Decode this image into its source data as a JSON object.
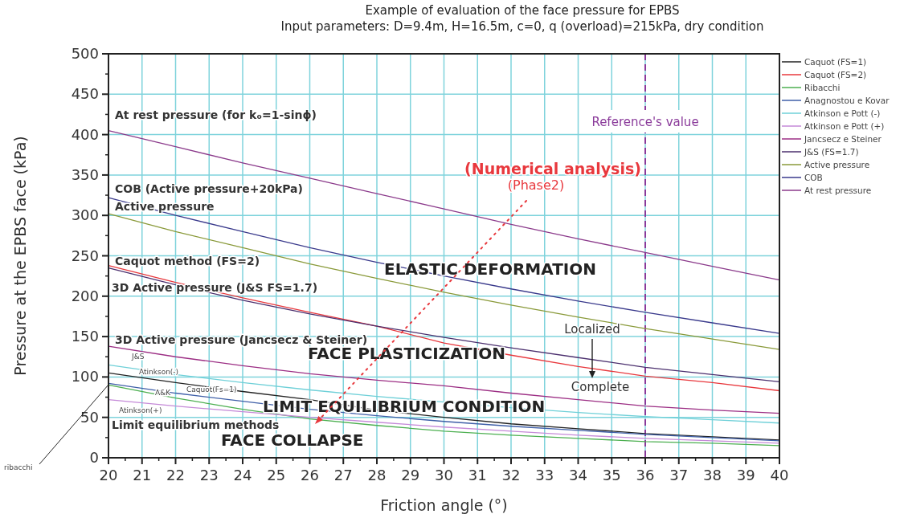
{
  "chart_data": {
    "type": "line",
    "title": "Example of evaluation of the face pressure for EPBS",
    "subtitle": "Input parameters: D=9.4m, H=16.5m, c=0, q (overload)=215kPa, dry condition",
    "xlabel": "Friction angle (°)",
    "ylabel": "Pressure at the EPBS face (kPa)",
    "x": [
      20,
      22,
      24,
      26,
      28,
      30,
      32,
      34,
      36,
      38,
      40
    ],
    "series": [
      {
        "name": "Caquot (FS=1)",
        "color": "#222222",
        "values": [
          105,
          93,
          82,
          72,
          59,
          50,
          42,
          36,
          30,
          26,
          22
        ]
      },
      {
        "name": "Caquot (FS=2)",
        "color": "#e8383d",
        "values": [
          238,
          217,
          198,
          180,
          163,
          142,
          127,
          113,
          101,
          93,
          83
        ]
      },
      {
        "name": "Ribacchi",
        "color": "#4caf50",
        "values": [
          90,
          74,
          60,
          48,
          40,
          33,
          28,
          24,
          20,
          18,
          15
        ]
      },
      {
        "name": "Anagnostou e Kovar",
        "color": "#3f5fa8",
        "values": [
          92,
          80,
          70,
          60,
          52,
          45,
          39,
          34,
          29,
          25,
          21
        ]
      },
      {
        "name": "Atkinson e Pott (-)",
        "color": "#6fd0d8",
        "values": [
          115,
          103,
          93,
          84,
          76,
          69,
          62,
          56,
          51,
          47,
          43
        ]
      },
      {
        "name": "Atkinson e Pott (+)",
        "color": "#c58ad8",
        "values": [
          72,
          64,
          57,
          50,
          44,
          38,
          33,
          28,
          24,
          21,
          18
        ]
      },
      {
        "name": "Jancsecz e Steiner",
        "color": "#9c2e84",
        "values": [
          138,
          125,
          114,
          104,
          96,
          89,
          80,
          72,
          64,
          59,
          55
        ]
      },
      {
        "name": "J&S (FS=1.7)",
        "color": "#4b2f6e",
        "values": [
          235,
          214,
          195,
          178,
          163,
          149,
          136,
          124,
          112,
          103,
          94
        ]
      },
      {
        "name": "Active pressure",
        "color": "#8a9a3a",
        "values": [
          302,
          280,
          260,
          240,
          222,
          205,
          189,
          174,
          160,
          147,
          134
        ]
      },
      {
        "name": "COB",
        "color": "#3a3a8c",
        "values": [
          322,
          300,
          280,
          260,
          242,
          225,
          209,
          194,
          180,
          167,
          154
        ]
      },
      {
        "name": "At rest pressure",
        "color": "#8b3a8b",
        "values": [
          405,
          385,
          365,
          346,
          327,
          308,
          289,
          271,
          254,
          237,
          220
        ]
      }
    ],
    "xlim": [
      20,
      40
    ],
    "xticks": [
      20,
      21,
      22,
      23,
      24,
      25,
      26,
      27,
      28,
      29,
      30,
      31,
      32,
      33,
      34,
      35,
      36,
      37,
      38,
      39,
      40
    ],
    "ylim": [
      0,
      500
    ],
    "yticks": [
      0,
      50,
      100,
      150,
      200,
      250,
      300,
      350,
      400,
      450,
      500
    ],
    "grid": true,
    "legend": "right",
    "ref_lines": [
      {
        "axis": "x",
        "value": 36,
        "label": "Reference's value",
        "color": "#8a3a9a",
        "line_style": "dashed"
      }
    ],
    "annotations": [
      "At rest pressure  (for kₒ=1-sinϕ)",
      "COB (Active pressure+20kPa)",
      "Active pressure",
      "Caquot method (FS=2)",
      "3D Active pressure (J&S FS=1.7)",
      "3D Active pressure (Jancsecz & Steiner)",
      "J&S",
      "Atinkson(-)",
      "A&K",
      "Caquot(Fs=1)",
      "Atinkson(+)",
      "ribacchi",
      "Limit equilibrium methods",
      "ELASTIC DEFORMATION",
      "FACE PLASTICIZATION",
      "LIMIT EQUILIBRIUM CONDITION",
      "FACE COLLAPSE",
      "(Numerical analysis)",
      "(Phase2)",
      "Localized",
      "Complete"
    ]
  }
}
